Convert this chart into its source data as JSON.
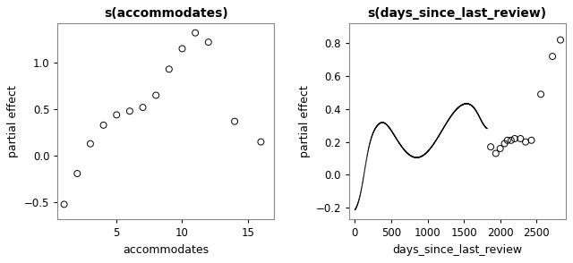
{
  "plot1": {
    "title": "s(accommodates)",
    "xlabel": "accommodates",
    "ylabel": "partial effect",
    "x": [
      1,
      2,
      3,
      4,
      5,
      6,
      7,
      8,
      9,
      10,
      11,
      12,
      14,
      16
    ],
    "y": [
      -0.52,
      -0.19,
      0.13,
      0.33,
      0.44,
      0.48,
      0.52,
      0.65,
      0.93,
      1.15,
      1.32,
      1.22,
      0.37,
      0.15
    ],
    "xlim": [
      0.5,
      17
    ],
    "ylim": [
      -0.68,
      1.42
    ],
    "xticks": [
      5,
      10,
      15
    ],
    "yticks": [
      -0.5,
      0.0,
      0.5,
      1.0
    ]
  },
  "plot2": {
    "title": "s(days_since_last_review)",
    "xlabel": "days_since_last_review",
    "ylabel": "partial effect",
    "xlim": [
      -80,
      2900
    ],
    "ylim": [
      -0.27,
      0.92
    ],
    "xticks": [
      0,
      500,
      1000,
      1500,
      2000,
      2500
    ],
    "yticks": [
      -0.2,
      0.0,
      0.2,
      0.4,
      0.6,
      0.8
    ],
    "sparse_x": [
      1870,
      1940,
      2000,
      2060,
      2100,
      2150,
      2200,
      2280,
      2350,
      2430,
      2560,
      2720,
      2830
    ],
    "sparse_y": [
      0.17,
      0.13,
      0.16,
      0.19,
      0.21,
      0.21,
      0.22,
      0.22,
      0.2,
      0.21,
      0.49,
      0.72,
      0.82
    ]
  },
  "marker_edgecolor": "black",
  "marker_facecolor": "none",
  "marker_size": 5,
  "background_color": "white",
  "title_fontsize": 10,
  "label_fontsize": 9,
  "tick_fontsize": 8.5
}
